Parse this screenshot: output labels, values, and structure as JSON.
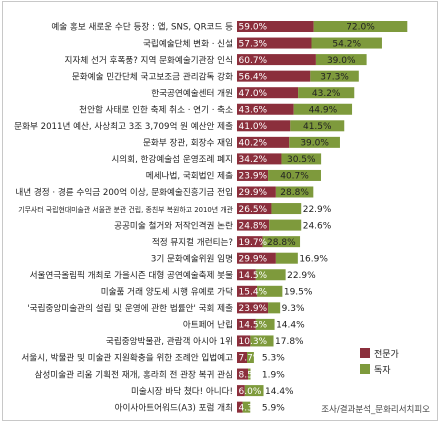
{
  "chart_data": {
    "type": "bar",
    "orientation": "horizontal",
    "title": "",
    "categories": [
      "예술 홍보 새로운 수단 등장 : 앱, SNS, QR코드 등",
      "국립예술단체 변화 · 신설",
      "지자체 선거 후폭풍? 지역 문화예술기관장 인식",
      "문화예술 민간단체 국고보조금 관리감독 강화",
      "한국공연예술센터 개원",
      "천안함 사태로 인한 축제 취소 · 연기 · 축소",
      "문화부 2011년 예산, 사상최고 3조 3,709억 원 예산안 제출",
      "문화부 장관, 회장수 재임",
      "시의회, 한강예술섬 운영조례 폐지",
      "메세나법, 국회법인 제출",
      "내년 경정 · 경륜 수익금 200억 이상, 문화예술진흥기금 전입",
      "기무사터 국립현대미술관 서울관 분관 건립, 종친부 복원하고 2010년 개관",
      "공공미술 철거와 저작인격권 논란",
      "적정 뮤지컬 개런티는?",
      "3기 문화예술위원 임명",
      "서울연극올림픽 개최로 가을시즌 대형 공연예술축제 봇물",
      "미술품 거래 양도세 시행 유예로 가닥",
      "'국립중앙미술관의 설립 및 운영에 관한 법률안' 국회 제출",
      "아트페어 난립",
      "국립중앙박물관, 관람객 아시아 1위",
      "서울시, 박물관 및 미술관 지원확충을 위한 조례안 입법예고",
      "삼성미술관 리움 기획전 재개, 홍라희 전 관장 복귀 관심",
      "미술시장 바닥 쳤다! 아니다!",
      "아이사아트어워드(A3) 포럼 개최"
    ],
    "series": [
      {
        "name": "전문가",
        "color": "#8b2f3c",
        "values": [
          59.0,
          57.3,
          60.7,
          56.4,
          47.0,
          43.6,
          41.0,
          40.2,
          34.2,
          23.9,
          29.9,
          26.5,
          24.8,
          19.7,
          29.9,
          14.5,
          15.4,
          23.9,
          14.5,
          10.3,
          7.7,
          8.5,
          6.0,
          4.3
        ],
        "labels": [
          "59.0%",
          "57.3%",
          "60.7%",
          "56.4%",
          "47.0%",
          "43.6%",
          "41.0%",
          "40.2%",
          "34.2%",
          "23.9%",
          "29.9%",
          "26.5%",
          "24.8%",
          "19.7%",
          "29.9%",
          "14.5%",
          "15.4%",
          "23.9%",
          "14.5%",
          "10.3%",
          "7.7%",
          "8.5%",
          "6.0%",
          "4.3%"
        ]
      },
      {
        "name": "독자",
        "color": "#7e9a3c",
        "values": [
          72.0,
          54.2,
          39.0,
          37.3,
          43.2,
          44.9,
          41.5,
          39.0,
          30.5,
          40.7,
          28.8,
          22.9,
          24.6,
          28.8,
          16.9,
          22.9,
          19.5,
          9.3,
          14.4,
          17.8,
          5.3,
          1.9,
          14.4,
          5.9
        ],
        "labels": [
          "72.0%",
          "54.2%",
          "39.0%",
          "37.3%",
          "43.2%",
          "44.9%",
          "41.5%",
          "39.0%",
          "30.5%",
          "40.7%",
          "28.8%",
          "22.9%",
          "24.6%",
          "28.8%",
          "16.9%",
          "22.9%",
          "19.5%",
          "9.3%",
          "14.4%",
          "17.8%",
          "5.3%",
          "1.9%",
          "14.4%",
          "5.9%"
        ]
      }
    ],
    "stacked": true,
    "grid": false,
    "legend_position": "bottom-right"
  },
  "source": "조사/결과분석_문화리서치피오"
}
